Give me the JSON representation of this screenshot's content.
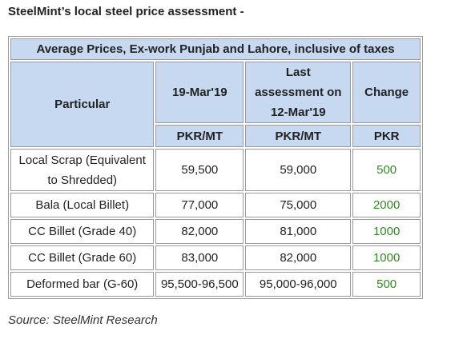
{
  "header": {
    "title": "SteelMint’s local steel price assessment -"
  },
  "table": {
    "caption": "Average Prices, Ex-work Punjab and Lahore, inclusive of taxes",
    "columns": [
      "Particular",
      "19-Mar'19",
      "Last assessment on 12-Mar'19",
      "Change"
    ],
    "units": [
      "PKR/MT",
      "PKR/MT",
      "PKR"
    ],
    "rows": [
      [
        "Local Scrap (Equivalent to Shredded)",
        "59,500",
        "59,000",
        "500"
      ],
      [
        "Bala (Local Billet)",
        "77,000",
        "75,000",
        "2000"
      ],
      [
        "CC Billet (Grade 40)",
        "82,000",
        "81,000",
        "1000"
      ],
      [
        "CC Billet (Grade 60)",
        "83,000",
        "82,000",
        "1000"
      ],
      [
        "Deformed bar (G-60)",
        "95,500-96,500",
        "95,000-96,000",
        "500"
      ]
    ]
  },
  "footer": {
    "source": "Source: SteelMint Research"
  }
}
